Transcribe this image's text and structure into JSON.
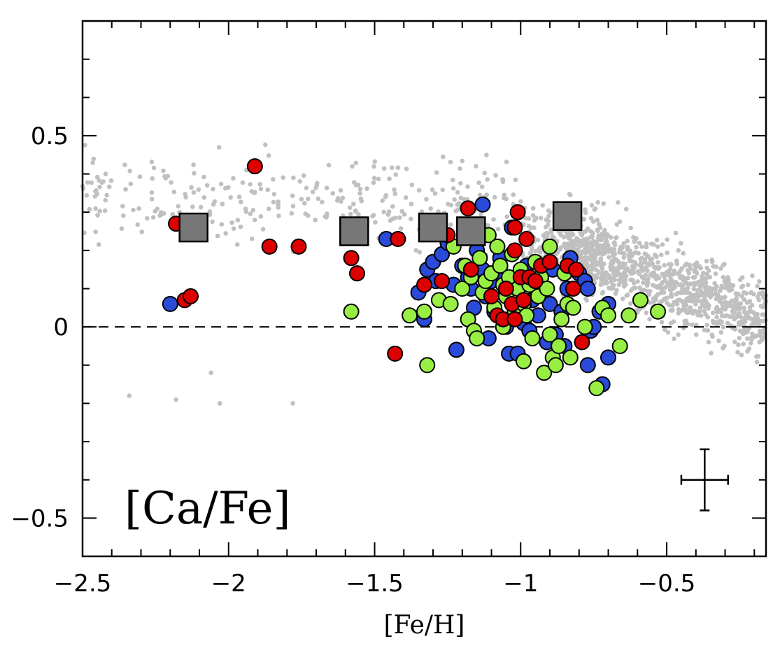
{
  "chart_data": {
    "type": "scatter",
    "title": "",
    "panel_label": "[Ca/Fe]",
    "xlabel": "[Fe/H]",
    "ylabel": "",
    "xlim": [
      -2.5,
      -0.16
    ],
    "ylim": [
      -0.6,
      0.8
    ],
    "xticks": [
      -2.5,
      -2,
      -1.5,
      -1,
      -0.5
    ],
    "xtick_labels": [
      "−2.5",
      "−2",
      "−1.5",
      "−1",
      "−0.5"
    ],
    "yticks": [
      -0.5,
      0,
      0.5
    ],
    "ytick_labels": [
      "−0.5",
      "0",
      "0.5"
    ],
    "reference_line": {
      "y": 0,
      "style": "dashed"
    },
    "grid": false,
    "colors": {
      "background": "#c0c0c0",
      "red": "#dd0000",
      "blue": "#2a4bd9",
      "green": "#99ee44",
      "square": "#777777"
    },
    "error_bar": {
      "x": -0.37,
      "y": -0.4,
      "xerr": 0.08,
      "yerr": 0.08
    },
    "series": [
      {
        "key": "squares",
        "points": [
          [
            -2.12,
            0.26
          ],
          [
            -1.57,
            0.25
          ],
          [
            -1.3,
            0.26
          ],
          [
            -1.17,
            0.25
          ],
          [
            -0.84,
            0.29
          ]
        ]
      },
      {
        "key": "red",
        "points": [
          [
            -2.18,
            0.27
          ],
          [
            -2.15,
            0.07
          ],
          [
            -2.13,
            0.08
          ],
          [
            -1.91,
            0.42
          ],
          [
            -1.86,
            0.21
          ],
          [
            -1.76,
            0.21
          ],
          [
            -1.58,
            0.18
          ],
          [
            -1.56,
            0.14
          ],
          [
            -1.42,
            0.23
          ],
          [
            -1.43,
            -0.07
          ],
          [
            -1.33,
            0.11
          ],
          [
            -1.27,
            0.12
          ],
          [
            -1.25,
            0.24
          ],
          [
            -1.18,
            0.31
          ],
          [
            -1.17,
            0.15
          ],
          [
            -1.1,
            0.08
          ],
          [
            -1.08,
            0.03
          ],
          [
            -1.06,
            0.02
          ],
          [
            -1.03,
            0.06
          ],
          [
            -1.02,
            0.02
          ],
          [
            -1.02,
            0.2
          ],
          [
            -1.02,
            0.26
          ],
          [
            -1.01,
            0.3
          ],
          [
            -1.0,
            0.13
          ],
          [
            -0.99,
            0.07
          ],
          [
            -0.98,
            0.23
          ],
          [
            -0.93,
            0.16
          ],
          [
            -0.9,
            0.17
          ],
          [
            -0.84,
            0.16
          ],
          [
            -0.82,
            0.1
          ],
          [
            -0.81,
            0.15
          ],
          [
            -0.79,
            -0.04
          ],
          [
            -0.97,
            0.13
          ],
          [
            -1.05,
            0.1
          ],
          [
            -0.95,
            0.12
          ]
        ]
      },
      {
        "key": "blue",
        "points": [
          [
            -2.2,
            0.06
          ],
          [
            -1.46,
            0.23
          ],
          [
            -1.35,
            0.09
          ],
          [
            -1.33,
            0.02
          ],
          [
            -1.32,
            0.15
          ],
          [
            -1.3,
            0.17
          ],
          [
            -1.29,
            0.12
          ],
          [
            -1.27,
            0.19
          ],
          [
            -1.25,
            0.22
          ],
          [
            -1.23,
            0.11
          ],
          [
            -1.22,
            -0.06
          ],
          [
            -1.2,
            0.16
          ],
          [
            -1.18,
            0.13
          ],
          [
            -1.17,
            0.1
          ],
          [
            -1.16,
            0.05
          ],
          [
            -1.15,
            0.2
          ],
          [
            -1.13,
            0.32
          ],
          [
            -1.13,
            0.15
          ],
          [
            -1.12,
            0.08
          ],
          [
            -1.1,
            0.12
          ],
          [
            -1.09,
            0.04
          ],
          [
            -1.08,
            0.21
          ],
          [
            -1.07,
            0.18
          ],
          [
            -1.06,
            0.13
          ],
          [
            -1.05,
            0.0
          ],
          [
            -1.05,
            0.09
          ],
          [
            -1.04,
            -0.07
          ],
          [
            -1.03,
            0.26
          ],
          [
            -1.02,
            0.04
          ],
          [
            -1.01,
            -0.07
          ],
          [
            -1.0,
            0.11
          ],
          [
            -0.99,
            0.01
          ],
          [
            -0.98,
            0.16
          ],
          [
            -0.97,
            -0.01
          ],
          [
            -0.96,
            0.07
          ],
          [
            -0.94,
            0.03
          ],
          [
            -0.93,
            0.1
          ],
          [
            -0.91,
            -0.04
          ],
          [
            -0.9,
            0.06
          ],
          [
            -0.89,
            0.15
          ],
          [
            -0.88,
            -0.02
          ],
          [
            -0.86,
            0.04
          ],
          [
            -0.85,
            -0.05
          ],
          [
            -0.84,
            0.1
          ],
          [
            -0.83,
            0.18
          ],
          [
            -0.8,
            0.14
          ],
          [
            -0.78,
            0.12
          ],
          [
            -0.77,
            0.1
          ],
          [
            -0.76,
            -0.01
          ],
          [
            -0.75,
            0.0
          ],
          [
            -0.73,
            0.04
          ],
          [
            -0.72,
            -0.15
          ],
          [
            -0.7,
            0.06
          ],
          [
            -0.7,
            -0.08
          ],
          [
            -0.77,
            -0.1
          ],
          [
            -1.11,
            -0.03
          ]
        ]
      },
      {
        "key": "green",
        "points": [
          [
            -1.58,
            0.04
          ],
          [
            -1.38,
            0.03
          ],
          [
            -1.33,
            0.04
          ],
          [
            -1.32,
            -0.1
          ],
          [
            -1.28,
            0.07
          ],
          [
            -1.24,
            0.06
          ],
          [
            -1.23,
            0.21
          ],
          [
            -1.2,
            0.1
          ],
          [
            -1.19,
            0.16
          ],
          [
            -1.18,
            0.02
          ],
          [
            -1.17,
            0.13
          ],
          [
            -1.16,
            -0.01
          ],
          [
            -1.15,
            -0.03
          ],
          [
            -1.14,
            0.18
          ],
          [
            -1.13,
            0.09
          ],
          [
            -1.12,
            0.12
          ],
          [
            -1.11,
            0.24
          ],
          [
            -1.1,
            0.14
          ],
          [
            -1.09,
            0.05
          ],
          [
            -1.08,
            0.21
          ],
          [
            -1.07,
            0.16
          ],
          [
            -1.06,
            0.11
          ],
          [
            -1.05,
            0.08
          ],
          [
            -1.04,
            0.13
          ],
          [
            -1.03,
            0.19
          ],
          [
            -1.02,
            0.04
          ],
          [
            -1.01,
            0.1
          ],
          [
            -1.0,
            0.15
          ],
          [
            -0.99,
            0.06
          ],
          [
            -0.98,
            0.03
          ],
          [
            -0.97,
            0.11
          ],
          [
            -0.96,
            -0.03
          ],
          [
            -0.95,
            0.17
          ],
          [
            -0.94,
            0.08
          ],
          [
            -0.93,
            0.13
          ],
          [
            -0.92,
            -0.12
          ],
          [
            -0.91,
            0.1
          ],
          [
            -0.9,
            -0.02
          ],
          [
            -0.9,
            0.21
          ],
          [
            -0.89,
            -0.08
          ],
          [
            -0.88,
            -0.1
          ],
          [
            -0.87,
            -0.05
          ],
          [
            -0.86,
            0.02
          ],
          [
            -0.85,
            0.14
          ],
          [
            -0.84,
            0.06
          ],
          [
            -0.83,
            -0.08
          ],
          [
            -0.82,
            0.05
          ],
          [
            -0.78,
            0.0
          ],
          [
            -0.74,
            -0.16
          ],
          [
            -0.72,
            0.05
          ],
          [
            -0.7,
            0.03
          ],
          [
            -0.66,
            -0.05
          ],
          [
            -0.63,
            0.03
          ],
          [
            -0.59,
            0.07
          ],
          [
            -0.53,
            0.04
          ],
          [
            -0.99,
            -0.09
          ],
          [
            -1.06,
            0.0
          ]
        ]
      }
    ]
  }
}
